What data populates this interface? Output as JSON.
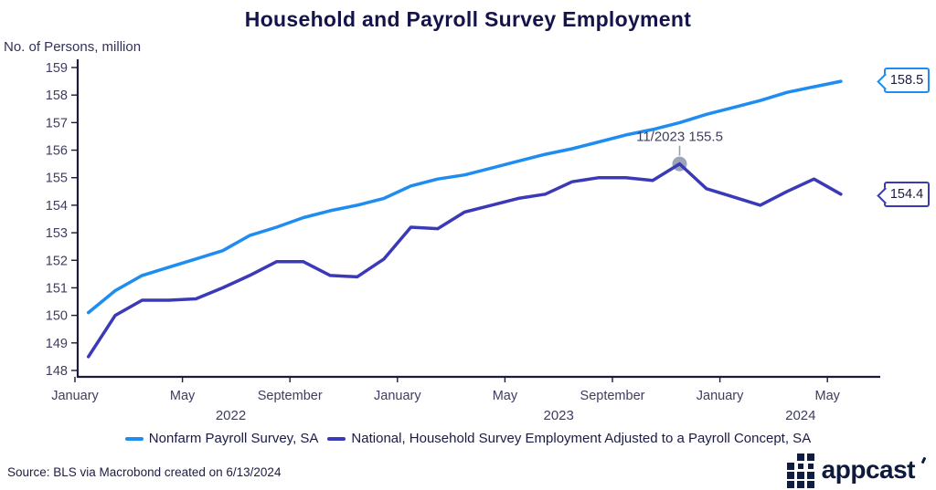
{
  "header": {
    "title": "Household and Payroll Survey Employment"
  },
  "chart": {
    "y_axis_unit": "No. of Persons, million",
    "end_labels": [
      {
        "series": "nonfarm_payroll",
        "text": "158.5"
      },
      {
        "series": "household_adjusted",
        "text": "154.4"
      }
    ]
  },
  "chart_data": {
    "type": "line",
    "title": "Household and Payroll Survey Employment",
    "ylabel": "No. of Persons, million",
    "ylim": [
      148,
      159
    ],
    "y_ticks": [
      148,
      149,
      150,
      151,
      152,
      153,
      154,
      155,
      156,
      157,
      158,
      159
    ],
    "grid": false,
    "legend_position": "bottom",
    "x_unit": "month",
    "x_start": "2022-01",
    "x_end": "2024-05",
    "x_tick_labels": [
      {
        "month": 0,
        "label": "January"
      },
      {
        "month": 4,
        "label": "May"
      },
      {
        "month": 8,
        "label": "September"
      },
      {
        "month": 12,
        "label": "January"
      },
      {
        "month": 16,
        "label": "May"
      },
      {
        "month": 20,
        "label": "September"
      },
      {
        "month": 24,
        "label": "January"
      },
      {
        "month": 28,
        "label": "May"
      }
    ],
    "year_labels": [
      {
        "label": "2022",
        "month": 5.8
      },
      {
        "label": "2023",
        "month": 18
      },
      {
        "label": "2024",
        "month": 27
      }
    ],
    "series": [
      {
        "name": "Nonfarm Payroll Survey, SA",
        "color": "#1e8cf0",
        "values": [
          150.1,
          150.9,
          151.45,
          151.75,
          152.05,
          152.35,
          152.9,
          153.2,
          153.55,
          153.8,
          154.0,
          154.25,
          154.7,
          154.95,
          155.1,
          155.35,
          155.6,
          155.85,
          156.05,
          156.3,
          156.55,
          156.75,
          157.0,
          157.3,
          157.55,
          157.8,
          158.1,
          158.3,
          158.5
        ]
      },
      {
        "name": "National, Household Survey Employment Adjusted to a Payroll Concept, SA",
        "color": "#3a3ab8",
        "values": [
          148.5,
          150.0,
          150.55,
          150.55,
          150.6,
          151.0,
          151.45,
          151.95,
          151.95,
          151.45,
          151.4,
          152.05,
          153.2,
          153.15,
          153.75,
          154.0,
          154.25,
          154.4,
          154.85,
          155.0,
          155.0,
          154.9,
          155.5,
          154.6,
          154.3,
          154.0,
          154.5,
          154.95,
          154.4
        ]
      }
    ],
    "annotation": {
      "label": "11/2023 155.5",
      "month": 22,
      "value": 155.5,
      "series": "household_adjusted"
    }
  },
  "legend": {
    "items": [
      {
        "label": "Nonfarm Payroll Survey, SA"
      },
      {
        "label": "National, Household Survey Employment Adjusted to a Payroll Concept, SA"
      }
    ]
  },
  "footer": {
    "source": "Source: BLS via Macrobond created on 6/13/2024",
    "logo_text": "appcast"
  }
}
